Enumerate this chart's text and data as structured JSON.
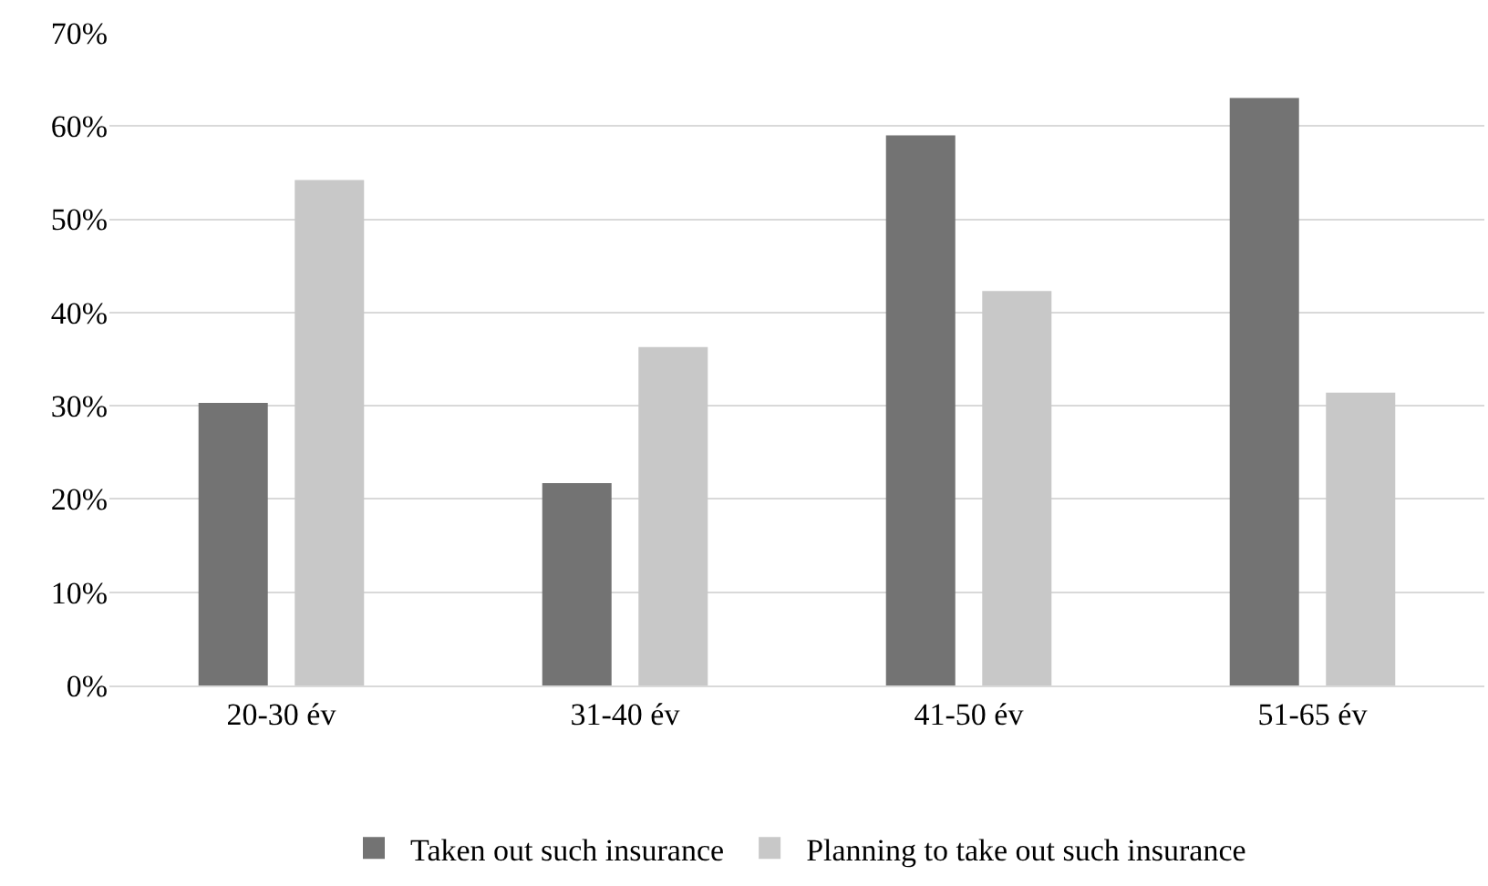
{
  "chart_data": {
    "type": "bar",
    "categories": [
      "20-30 év",
      "31-40 év",
      "41-50 év",
      "51-65 év"
    ],
    "series": [
      {
        "name": "Taken out such insurance",
        "color": "#737373",
        "values": [
          30.3,
          21.7,
          59.0,
          63.0
        ]
      },
      {
        "name": "Planning to take out such insurance",
        "color": "#c8c8c8",
        "values": [
          54.2,
          36.3,
          42.3,
          31.4
        ]
      }
    ],
    "ylim": [
      0,
      70
    ],
    "yticks": [
      {
        "value": 0,
        "label": "0%"
      },
      {
        "value": 10,
        "label": "10%"
      },
      {
        "value": 20,
        "label": "20%"
      },
      {
        "value": 30,
        "label": "30%"
      },
      {
        "value": 40,
        "label": "40%"
      },
      {
        "value": 50,
        "label": "50%"
      },
      {
        "value": 60,
        "label": "60%"
      },
      {
        "value": 70,
        "label": "70%"
      }
    ],
    "grid": "y",
    "legend": "bottom"
  }
}
